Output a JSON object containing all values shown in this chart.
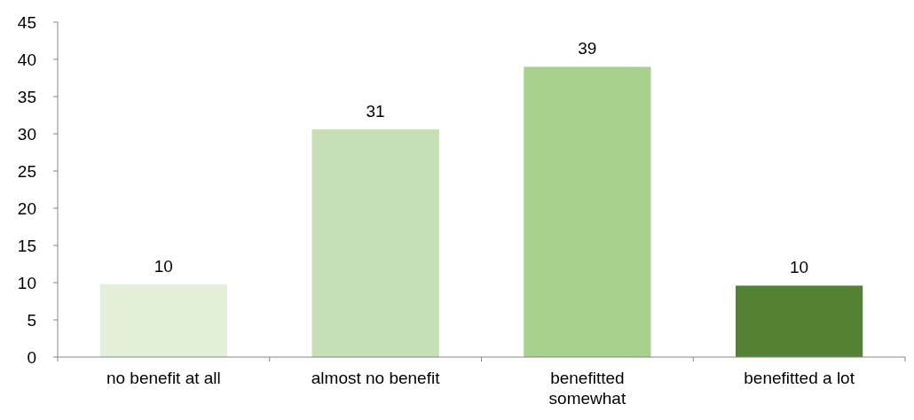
{
  "chart_data": {
    "type": "bar",
    "categories": [
      "no benefit at all",
      "almost no benefit",
      "benefitted somewhat",
      "benefitted a lot"
    ],
    "values": [
      9.8,
      30.6,
      39,
      9.6
    ],
    "value_labels": [
      "10",
      "31",
      "39",
      "10"
    ],
    "colors": [
      "#e2efd9",
      "#c5e0b4",
      "#a9d18e",
      "#548235"
    ],
    "ylim": [
      0,
      45
    ],
    "yticks": [
      0,
      5,
      10,
      15,
      20,
      25,
      30,
      35,
      40,
      45
    ],
    "grid": false
  }
}
